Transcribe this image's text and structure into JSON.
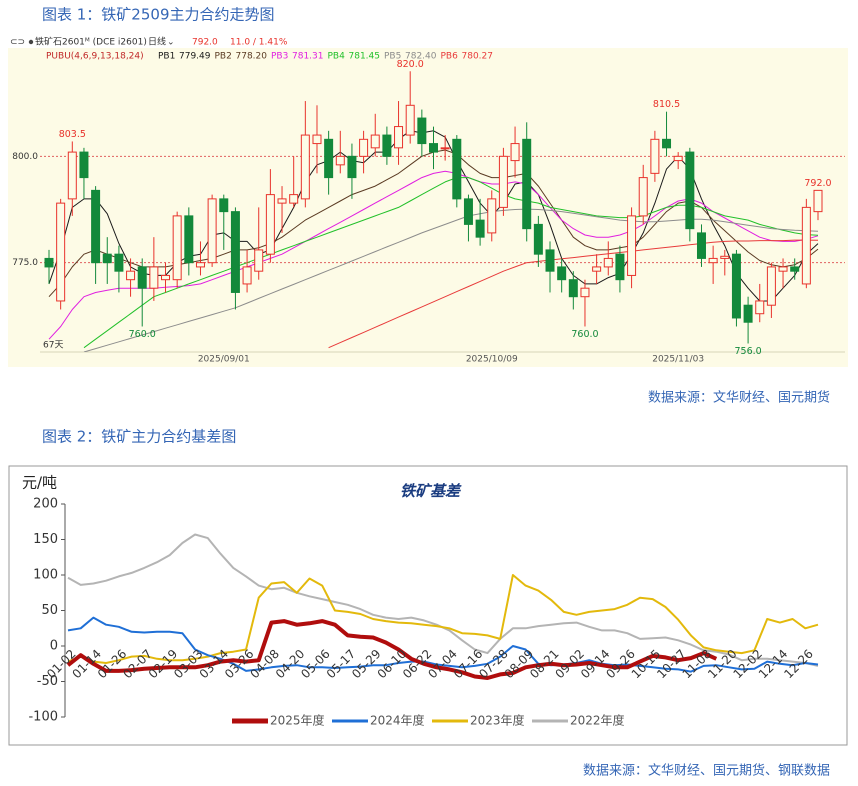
{
  "chart_data": [
    {
      "type": "candlestick",
      "caption": "图表 1：铁矿2509主力合约走势图",
      "instrument": "铁矿石2601ᴹ (DCE i2601)",
      "period": "日线",
      "last": "792.0",
      "change": "11.0 / 1.41%",
      "indicator": "PUBU(4,6,9,13,18,24)",
      "count_label": "67天",
      "source": "数据来源：文华财经、国元期货",
      "up_color": "#e8322b",
      "down_color": "#13893b",
      "categories": [
        null,
        null,
        null,
        null,
        null,
        null,
        null,
        null,
        null,
        null,
        null,
        null,
        null,
        null,
        null,
        "2025/09/01",
        null,
        null,
        null,
        null,
        null,
        null,
        null,
        null,
        null,
        null,
        null,
        null,
        null,
        null,
        null,
        null,
        null,
        null,
        null,
        null,
        null,
        null,
        "2025/10/09",
        null,
        null,
        null,
        null,
        null,
        null,
        null,
        null,
        null,
        null,
        null,
        null,
        null,
        null,
        null,
        "2025/11/03",
        null,
        null,
        null,
        null,
        null,
        null,
        null,
        null,
        null,
        null,
        null,
        null
      ],
      "open": [
        776,
        766,
        790,
        801,
        792,
        777,
        777,
        771,
        774,
        769,
        771,
        771,
        786,
        774,
        775,
        790,
        787,
        770,
        773,
        777,
        789,
        789,
        790,
        803,
        804,
        798,
        800,
        800,
        802,
        805,
        802,
        805,
        809,
        803,
        802,
        804,
        790,
        785,
        782,
        788,
        799,
        804,
        784,
        778,
        774,
        771,
        767,
        773,
        774,
        777,
        772,
        786,
        796,
        804,
        799,
        801,
        782,
        775,
        776,
        777,
        765,
        763,
        765,
        773,
        774,
        770,
        787
      ],
      "high": [
        778,
        790,
        803.5,
        802,
        793,
        781,
        779,
        776,
        776,
        781,
        775,
        787,
        788,
        780,
        791,
        791,
        788,
        778,
        788,
        797,
        793,
        800,
        813,
        812,
        806,
        806,
        803,
        806,
        810,
        807,
        813,
        820,
        811,
        807,
        805,
        805,
        791,
        790,
        792,
        802,
        807,
        808,
        786,
        780,
        776,
        773,
        771,
        777,
        780,
        779,
        788,
        798,
        806,
        810.5,
        801,
        802,
        784,
        779,
        778,
        778,
        767,
        770,
        775,
        776,
        776,
        790,
        792
      ],
      "low": [
        770,
        764,
        786,
        790,
        770,
        770,
        768,
        767,
        760,
        766,
        768,
        769,
        772,
        772,
        774,
        778,
        764,
        768,
        771,
        775,
        782,
        788,
        788,
        796,
        791,
        796,
        790,
        796,
        800,
        798,
        798,
        803,
        800,
        797,
        799,
        788,
        780,
        779,
        780,
        786,
        795,
        780,
        774,
        768,
        768,
        764,
        760,
        770,
        772,
        768,
        769,
        784,
        794,
        800,
        797,
        780,
        774,
        770,
        772,
        760,
        756,
        761,
        762,
        769,
        771,
        769,
        785
      ],
      "close": [
        774,
        789,
        801,
        795,
        775,
        775,
        773,
        773,
        769,
        774,
        772,
        786,
        775,
        775,
        790,
        787,
        768,
        774,
        778,
        791,
        790,
        791,
        805,
        805,
        795,
        800,
        795,
        804,
        805,
        800,
        807,
        812,
        803,
        801,
        802,
        790,
        784,
        781,
        790,
        800,
        803,
        783,
        777,
        773,
        771,
        767,
        769,
        774,
        776,
        771,
        786,
        795,
        804,
        802,
        800,
        783,
        776,
        776,
        776.5,
        762,
        761,
        766,
        774,
        774,
        773,
        788,
        792
      ],
      "high_labels": {
        "2": "803.5",
        "31": "820.0",
        "53": "810.5",
        "66": "792.0"
      },
      "low_labels": {
        "8": "760.0",
        "46": "760.0",
        "60": "756.0"
      },
      "ylim": [
        754,
        825
      ],
      "yticks": [
        {
          "value": 775,
          "label": "775.0"
        },
        {
          "value": 800,
          "label": "800.0"
        }
      ],
      "grid": true,
      "series": [
        {
          "name": "PB1",
          "color": "#1a1a1a",
          "value_labels": {
            "66": "779.49"
          },
          "values": [
            770,
            778,
            788,
            790,
            790,
            786.5,
            779.5,
            774,
            772.5,
            772,
            772,
            775,
            776.5,
            777,
            781.5,
            782,
            780,
            780,
            777,
            778,
            783,
            788,
            794,
            798,
            799,
            801,
            799,
            798.5,
            801,
            801,
            804,
            806,
            805.5,
            806,
            804.5,
            799,
            794,
            789,
            786,
            789,
            793.5,
            794,
            791,
            784,
            776,
            772,
            770,
            770,
            771.5,
            772.5,
            777,
            782,
            789,
            797,
            800,
            797,
            790,
            784,
            779,
            772.5,
            769,
            766,
            766,
            769,
            772,
            777,
            779.49
          ]
        },
        {
          "name": "PB2",
          "color": "#5a3a22",
          "value_labels": {
            "66": "778.20"
          },
          "values": [
            767,
            770,
            774,
            777,
            778,
            777,
            776,
            775,
            774,
            774,
            774,
            774.5,
            775,
            775.5,
            776,
            777,
            778,
            778,
            778.5,
            779.5,
            781,
            783,
            785,
            786.5,
            788,
            789.5,
            791,
            792,
            793,
            794.5,
            796,
            798,
            800,
            801,
            801.5,
            800.5,
            798,
            796,
            795,
            795,
            795.5,
            796,
            793,
            789,
            785,
            781,
            779,
            778,
            778,
            778.5,
            779,
            781,
            784,
            787,
            789,
            789.5,
            788,
            785,
            782.5,
            780,
            777.5,
            775.5,
            774.5,
            774,
            774.5,
            776,
            778.2
          ]
        },
        {
          "name": "PB3",
          "color": "#e01fe0",
          "value_labels": {
            "66": "781.31"
          },
          "values": [
            757,
            760,
            764,
            767,
            768,
            768.5,
            769,
            769,
            769,
            769,
            769.2,
            769.4,
            769.6,
            770,
            771,
            772,
            773,
            774,
            775,
            776,
            777,
            778.5,
            780,
            781.5,
            783,
            784.5,
            786,
            787.5,
            789,
            790.5,
            792,
            793.5,
            795,
            796,
            796.5,
            796,
            795,
            794,
            793.5,
            793.5,
            794,
            793.5,
            791,
            788,
            785,
            783,
            781.5,
            781,
            781,
            781.5,
            782.5,
            784,
            786,
            788,
            789.5,
            790,
            789,
            787,
            785.5,
            784,
            782.5,
            781,
            780.2,
            780,
            780,
            780.5,
            781.31
          ]
        },
        {
          "name": "PB4",
          "color": "#22c02a",
          "value_labels": {
            "66": "781.45"
          },
          "values": [
            null,
            null,
            null,
            755,
            757,
            759,
            761,
            763,
            765,
            767,
            768,
            769,
            770,
            771,
            772,
            773,
            774,
            775,
            776,
            777,
            778,
            779,
            780,
            781,
            782,
            783,
            784,
            785,
            786,
            787,
            788,
            789.5,
            791,
            792.5,
            794,
            795,
            795,
            794,
            792.5,
            791,
            790,
            789.5,
            789,
            788,
            787.5,
            787,
            786.5,
            786,
            785.8,
            785.6,
            785.6,
            786,
            787,
            788,
            788.5,
            788.5,
            788,
            787,
            786,
            785.5,
            785,
            784,
            783.3,
            782.6,
            782,
            781.6,
            781.45
          ]
        },
        {
          "name": "PB5",
          "color": "#8c8c8c",
          "value_labels": {
            "66": "782.40"
          },
          "values": [
            null,
            null,
            null,
            754,
            754.8,
            755.6,
            756.4,
            757.2,
            758,
            758.8,
            759.6,
            760.4,
            761.2,
            762,
            762.8,
            763.6,
            764.4,
            765.5,
            766.6,
            767.7,
            768.8,
            769.9,
            771,
            772.1,
            773.2,
            774.3,
            775.4,
            776.5,
            777.6,
            778.7,
            779.8,
            780.9,
            782,
            783,
            784,
            785,
            786,
            786.5,
            787,
            787.3,
            787.5,
            787.6,
            787.5,
            787.3,
            787,
            786.6,
            786.2,
            785.8,
            785.4,
            785,
            784.8,
            784.6,
            784.6,
            784.8,
            785,
            785.2,
            785.2,
            785,
            784.6,
            784.2,
            783.8,
            783.4,
            783,
            782.8,
            782.6,
            782.5,
            782.4
          ]
        },
        {
          "name": "PB6",
          "color": "#e83a3a",
          "value_labels": {
            "66": "780.27"
          },
          "values": [
            null,
            null,
            null,
            null,
            null,
            null,
            null,
            null,
            null,
            null,
            null,
            null,
            null,
            null,
            null,
            null,
            null,
            null,
            null,
            null,
            null,
            null,
            null,
            null,
            755,
            756.2,
            757.4,
            758.6,
            759.8,
            761,
            762.2,
            763.4,
            764.6,
            765.8,
            767,
            768.2,
            769.4,
            770.6,
            771.8,
            773,
            774,
            775,
            775.3,
            775.6,
            775.9,
            776.2,
            776.5,
            776.8,
            777.1,
            777.4,
            777.7,
            778,
            778.3,
            778.6,
            778.9,
            779.2,
            779.5,
            779.8,
            780,
            780.1,
            780.1,
            780.2,
            780.2,
            780.2,
            780.3,
            780.3,
            780.27
          ]
        }
      ]
    },
    {
      "type": "line",
      "caption": "图表 2：铁矿主力合约基差图",
      "title": "铁矿基差",
      "ylabel": "元/吨",
      "source": "数据来源：文华财经、国元期货、钢联数据",
      "categories": [
        "01-02",
        null,
        "01-14",
        null,
        "01-26",
        null,
        "02-07",
        null,
        "02-19",
        null,
        "03-03",
        null,
        "03-14",
        null,
        "03-26",
        null,
        "04-08",
        null,
        "04-20",
        null,
        "05-06",
        null,
        "05-17",
        null,
        "05-29",
        null,
        "06-10",
        null,
        "06-22",
        null,
        "07-04",
        null,
        "07-16",
        null,
        "07-28",
        null,
        "08-09",
        null,
        "08-21",
        null,
        "09-02",
        null,
        "09-14",
        null,
        "09-26",
        null,
        "10-15",
        null,
        "10-27",
        null,
        "11-08",
        null,
        "11-20",
        null,
        "12-02",
        null,
        "12-14",
        null,
        "12-26",
        null
      ],
      "ylim": [
        -100,
        200
      ],
      "yticks": [
        -100,
        -50,
        0,
        50,
        100,
        150,
        200
      ],
      "series": [
        {
          "name": "2025年度",
          "color": "#b00d0d",
          "width": 4,
          "values": [
            -27,
            -13,
            -25,
            -35,
            -35,
            -34,
            -32,
            -31,
            -30,
            -30,
            -30,
            -27,
            -22,
            -20,
            -22,
            -20,
            33,
            35,
            30,
            32,
            35,
            30,
            15,
            13,
            12,
            5,
            -5,
            -18,
            -25,
            -30,
            -33,
            -37,
            -43,
            -45,
            -40,
            -38,
            -30,
            -27,
            -25,
            -27,
            -26,
            -24,
            -27,
            -30,
            -30,
            -22,
            -14,
            -16,
            -20,
            -17,
            -10,
            -18,
            null,
            null,
            null,
            null,
            null,
            null,
            null,
            null
          ]
        },
        {
          "name": "2024年度",
          "color": "#1f6fd6",
          "width": 2,
          "values": [
            22,
            25,
            40,
            30,
            27,
            20,
            19,
            20,
            20,
            18,
            -5,
            -13,
            -18,
            -25,
            -35,
            -33,
            -30,
            -28,
            -27,
            -30,
            -30,
            -31,
            -30,
            -29,
            -27,
            -27,
            -24,
            -22,
            -22,
            -26,
            -28,
            -30,
            -28,
            -25,
            -15,
            0,
            -5,
            -25,
            -27,
            -26,
            -24,
            -20,
            -25,
            -27,
            -26,
            -28,
            -30,
            -32,
            -33,
            -36,
            -28,
            -27,
            -30,
            -33,
            -32,
            -22,
            -25,
            -27,
            -24,
            -26
          ]
        },
        {
          "name": "2023年度",
          "color": "#e3b90c",
          "width": 2,
          "values": [
            -22,
            -15,
            -22,
            -24,
            -20,
            -15,
            -14,
            -18,
            -20,
            -20,
            -18,
            -15,
            -10,
            -8,
            -5,
            68,
            88,
            90,
            75,
            95,
            85,
            50,
            48,
            45,
            38,
            35,
            33,
            32,
            30,
            28,
            25,
            18,
            17,
            15,
            10,
            100,
            85,
            78,
            65,
            48,
            44,
            48,
            50,
            52,
            58,
            68,
            66,
            55,
            37,
            15,
            -2,
            -6,
            -8,
            -10,
            -6,
            38,
            33,
            38,
            25,
            30
          ]
        },
        {
          "name": "2022年度",
          "color": "#b4b4b4",
          "width": 2,
          "values": [
            96,
            86,
            88,
            92,
            98,
            103,
            110,
            118,
            128,
            145,
            157,
            152,
            130,
            110,
            98,
            85,
            80,
            82,
            75,
            70,
            66,
            62,
            58,
            52,
            44,
            40,
            38,
            40,
            36,
            30,
            22,
            8,
            -5,
            -10,
            10,
            25,
            25,
            28,
            30,
            32,
            33,
            27,
            22,
            22,
            18,
            10,
            11,
            12,
            8,
            2,
            -6,
            -8,
            -12,
            -20,
            -18,
            -18,
            -20,
            -22,
            -24,
            -28
          ]
        }
      ]
    }
  ]
}
